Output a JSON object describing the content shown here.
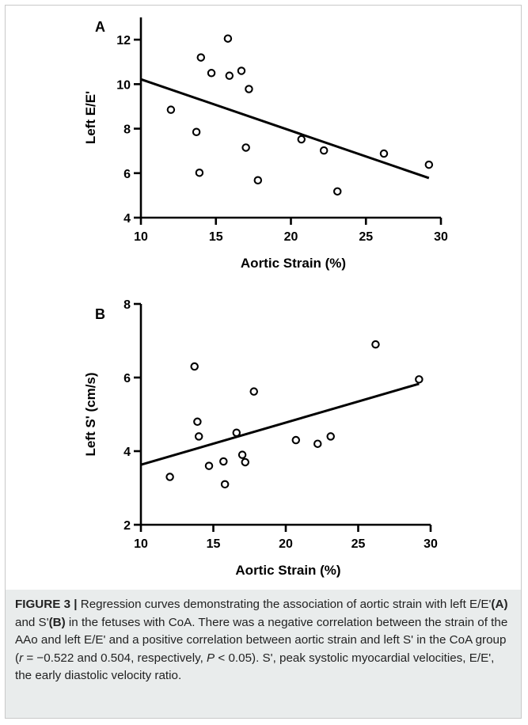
{
  "chart_data": [
    {
      "type": "scatter",
      "panel_label": "A",
      "xlabel": "Aortic Strain (%)",
      "ylabel": "Left E/E'",
      "xlim": [
        10,
        30
      ],
      "ylim": [
        4,
        13
      ],
      "x_ticks": [
        10,
        15,
        20,
        25,
        30
      ],
      "y_ticks": [
        4,
        6,
        8,
        10,
        12
      ],
      "points": [
        [
          12.0,
          8.85
        ],
        [
          13.7,
          7.85
        ],
        [
          13.9,
          6.02
        ],
        [
          14.0,
          11.2
        ],
        [
          14.7,
          10.5
        ],
        [
          15.8,
          12.05
        ],
        [
          15.9,
          10.38
        ],
        [
          16.7,
          10.6
        ],
        [
          17.0,
          7.15
        ],
        [
          17.2,
          9.78
        ],
        [
          17.8,
          5.68
        ],
        [
          20.7,
          7.52
        ],
        [
          22.2,
          7.02
        ],
        [
          23.1,
          5.18
        ],
        [
          26.2,
          6.88
        ],
        [
          29.2,
          6.38
        ]
      ],
      "regression": [
        [
          10,
          10.22
        ],
        [
          29.2,
          5.78
        ]
      ],
      "grid": false
    },
    {
      "type": "scatter",
      "panel_label": "B",
      "xlabel": "Aortic Strain (%)",
      "ylabel": "Left S' (cm/s)",
      "xlim": [
        10,
        30
      ],
      "ylim": [
        2,
        8
      ],
      "x_ticks": [
        10,
        15,
        20,
        25,
        30
      ],
      "y_ticks": [
        2,
        4,
        6,
        8
      ],
      "points": [
        [
          12.0,
          3.3
        ],
        [
          13.7,
          6.3
        ],
        [
          13.9,
          4.8
        ],
        [
          14.0,
          4.4
        ],
        [
          14.7,
          3.6
        ],
        [
          15.7,
          3.72
        ],
        [
          15.8,
          3.1
        ],
        [
          16.6,
          4.5
        ],
        [
          17.0,
          3.9
        ],
        [
          17.2,
          3.7
        ],
        [
          17.8,
          5.62
        ],
        [
          20.7,
          4.3
        ],
        [
          22.2,
          4.2
        ],
        [
          23.1,
          4.4
        ],
        [
          26.2,
          6.9
        ],
        [
          29.2,
          5.95
        ]
      ],
      "regression": [
        [
          10,
          3.63
        ],
        [
          29.2,
          5.83
        ]
      ],
      "grid": false
    }
  ],
  "caption": {
    "figure_label": "FIGURE 3 |",
    "text_1": " Regression curves demonstrating the association of aortic strain with left E/E'",
    "panel_a": "(A)",
    "text_2": " and S'",
    "panel_b": "(B)",
    "text_3": " in the fetuses with CoA. There was a negative correlation between the strain of the AAo and left E/E' and a positive correlation between aortic strain and left S' in the CoA group (",
    "r_symbol": "r",
    "text_4": " = −0.522 and 0.504, respectively, ",
    "p_symbol": "P",
    "text_5": " < 0.05). S', peak systolic myocardial velocities, E/E', the early diastolic velocity ratio."
  },
  "colors": {
    "ink": "#000000",
    "caption_background": "#e9ecec",
    "frame_border": "#c9c9c9"
  }
}
